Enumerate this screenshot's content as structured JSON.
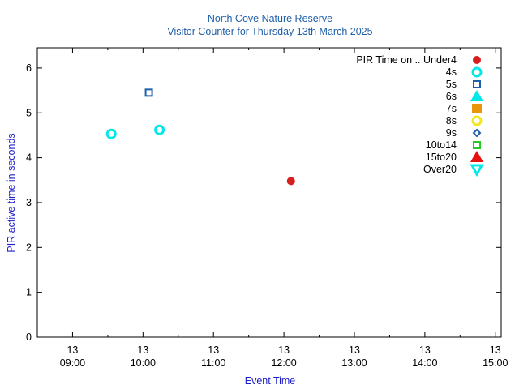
{
  "chart_data": {
    "type": "scatter",
    "title": "North Cove Nature Reserve",
    "subtitle": "Visitor Counter for Thursday 13th March 2025",
    "xlabel": "Event Time",
    "ylabel": "PIR active time in seconds",
    "xlim": [
      "13 08:30",
      "13 15:05"
    ],
    "ylim": [
      0,
      6.45
    ],
    "yticks": [
      0,
      1,
      2,
      3,
      4,
      5,
      6
    ],
    "xticks": [
      {
        "time": "09:00",
        "line1": "13",
        "line2": "09:00"
      },
      {
        "time": "10:00",
        "line1": "13",
        "line2": "10:00"
      },
      {
        "time": "11:00",
        "line1": "13",
        "line2": "11:00"
      },
      {
        "time": "12:00",
        "line1": "13",
        "line2": "12:00"
      },
      {
        "time": "13:00",
        "line1": "13",
        "line2": "13:00"
      },
      {
        "time": "14:00",
        "line1": "13",
        "line2": "14:00"
      },
      {
        "time": "15:00",
        "line1": "13",
        "line2": "15:00"
      }
    ],
    "grid": false,
    "legend_position": "top-right",
    "legend_title": "PIR Time on ..",
    "series": [
      {
        "name": "Under4",
        "color": "#d62020",
        "marker": "filled-circle",
        "points": [
          {
            "x": "12:06",
            "y": 3.48
          }
        ]
      },
      {
        "name": "4s",
        "color": "#00e8e8",
        "marker": "open-circle",
        "points": [
          {
            "x": "09:33",
            "y": 4.53
          },
          {
            "x": "10:14",
            "y": 4.62
          }
        ]
      },
      {
        "name": "5s",
        "color": "#1f5fa8",
        "marker": "open-square",
        "points": [
          {
            "x": "10:05",
            "y": 5.45
          }
        ]
      },
      {
        "name": "6s",
        "color": "#00e8e8",
        "marker": "filled-triangle",
        "points": []
      },
      {
        "name": "7s",
        "color": "#e8960a",
        "marker": "filled-square",
        "points": []
      },
      {
        "name": "8s",
        "color": "#f2e61c",
        "marker": "open-circle",
        "points": []
      },
      {
        "name": "9s",
        "color": "#1f5fa8",
        "marker": "open-diamond",
        "points": []
      },
      {
        "name": "10to14",
        "color": "#22cc22",
        "marker": "open-square",
        "points": []
      },
      {
        "name": "15to20",
        "color": "#e61010",
        "marker": "filled-triangle",
        "points": []
      },
      {
        "name": "Over20",
        "color": "#00e8e8",
        "marker": "open-triangle-down",
        "points": []
      }
    ]
  },
  "colors": {
    "title": "#1f5fa8",
    "axis_label": "#2020c8",
    "axis": "#000000"
  }
}
